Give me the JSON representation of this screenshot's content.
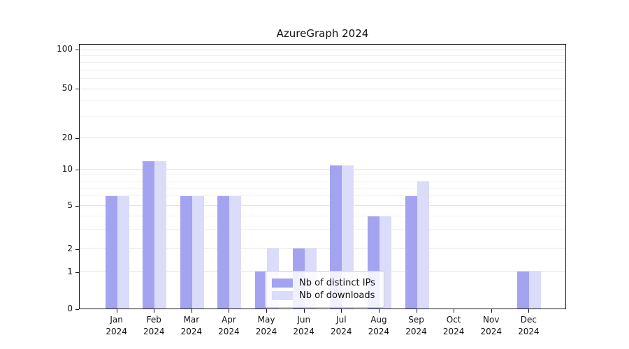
{
  "chart_data": {
    "type": "bar",
    "title": "AzureGraph 2024",
    "categories": [
      "Jan 2024",
      "Feb 2024",
      "Mar 2024",
      "Apr 2024",
      "May 2024",
      "Jun 2024",
      "Jul 2024",
      "Aug 2024",
      "Sep 2024",
      "Oct 2024",
      "Nov 2024",
      "Dec 2024"
    ],
    "series": [
      {
        "name": "Nb of distinct IPs",
        "color": "#a3a3f0",
        "values": [
          6,
          12,
          6,
          6,
          1,
          2,
          11,
          4,
          6,
          0,
          0,
          1
        ]
      },
      {
        "name": "Nb of downloads",
        "color": "#dbdbfa",
        "values": [
          6,
          12,
          6,
          6,
          2,
          2,
          11,
          4,
          8,
          0,
          0,
          1
        ]
      }
    ],
    "y_ticks": [
      0,
      1,
      2,
      5,
      10,
      20,
      50,
      100
    ],
    "y_minor_ticks": [
      3,
      4,
      6,
      7,
      8,
      9,
      30,
      40,
      60,
      70,
      80,
      90
    ],
    "ylim": [
      0,
      100
    ],
    "y_scale": "symlog",
    "grid": "horizontal",
    "legend_position": "lower center"
  }
}
